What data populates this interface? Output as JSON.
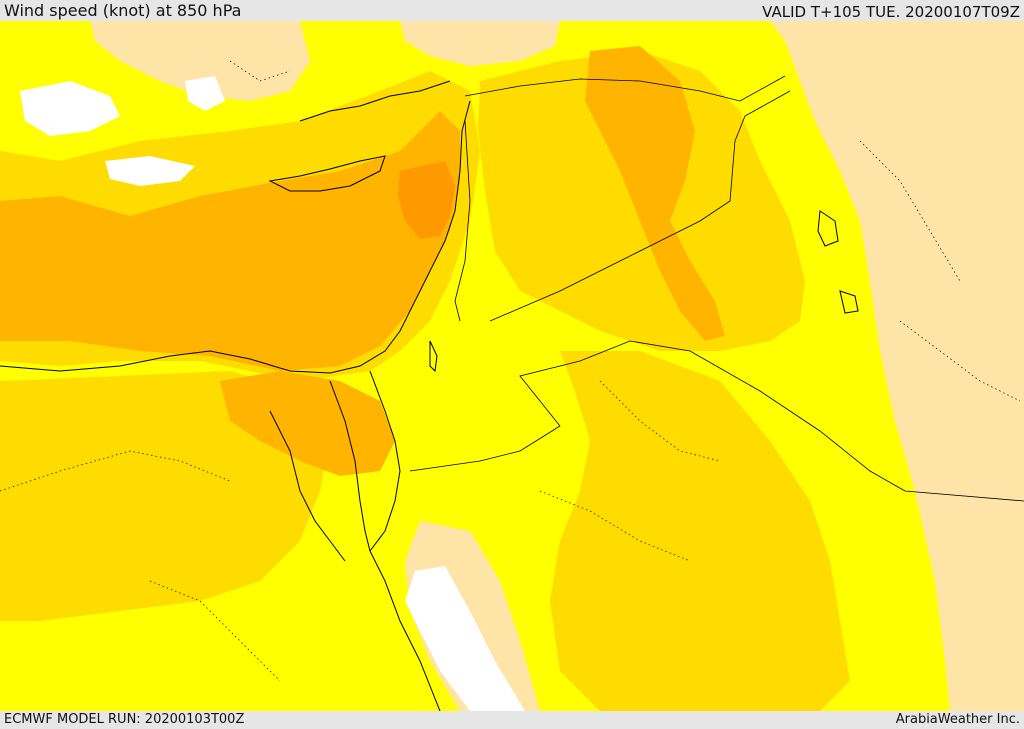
{
  "header": {
    "title": "Wind speed (knot) at 850 hPa",
    "valid_time": "VALID T+105 TUE. 20200107T09Z"
  },
  "footer": {
    "model_run": "ECMWF MODEL RUN: 20200103T00Z",
    "credit": "ArabiaWeather Inc."
  },
  "map": {
    "colors": {
      "none": "#ffffff",
      "low": "#ffe4a8",
      "light": "#ffff00",
      "moderate": "#ffdc00",
      "strong": "#ffb400",
      "very_strong": "#ff9900"
    }
  }
}
